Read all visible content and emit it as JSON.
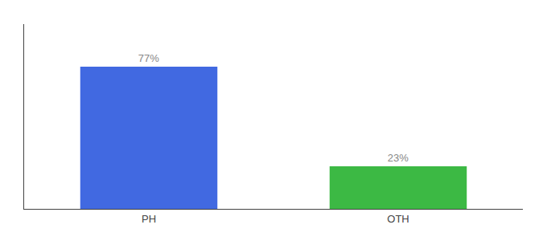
{
  "chart_data": {
    "type": "bar",
    "categories": [
      "PH",
      "OTH"
    ],
    "values": [
      77,
      23
    ],
    "value_labels": [
      "77%",
      "23%"
    ],
    "colors": [
      "#4169e1",
      "#3cb944"
    ],
    "ylim": [
      0,
      100
    ],
    "grid": false,
    "data_labels": true,
    "tick_labels": "x"
  }
}
